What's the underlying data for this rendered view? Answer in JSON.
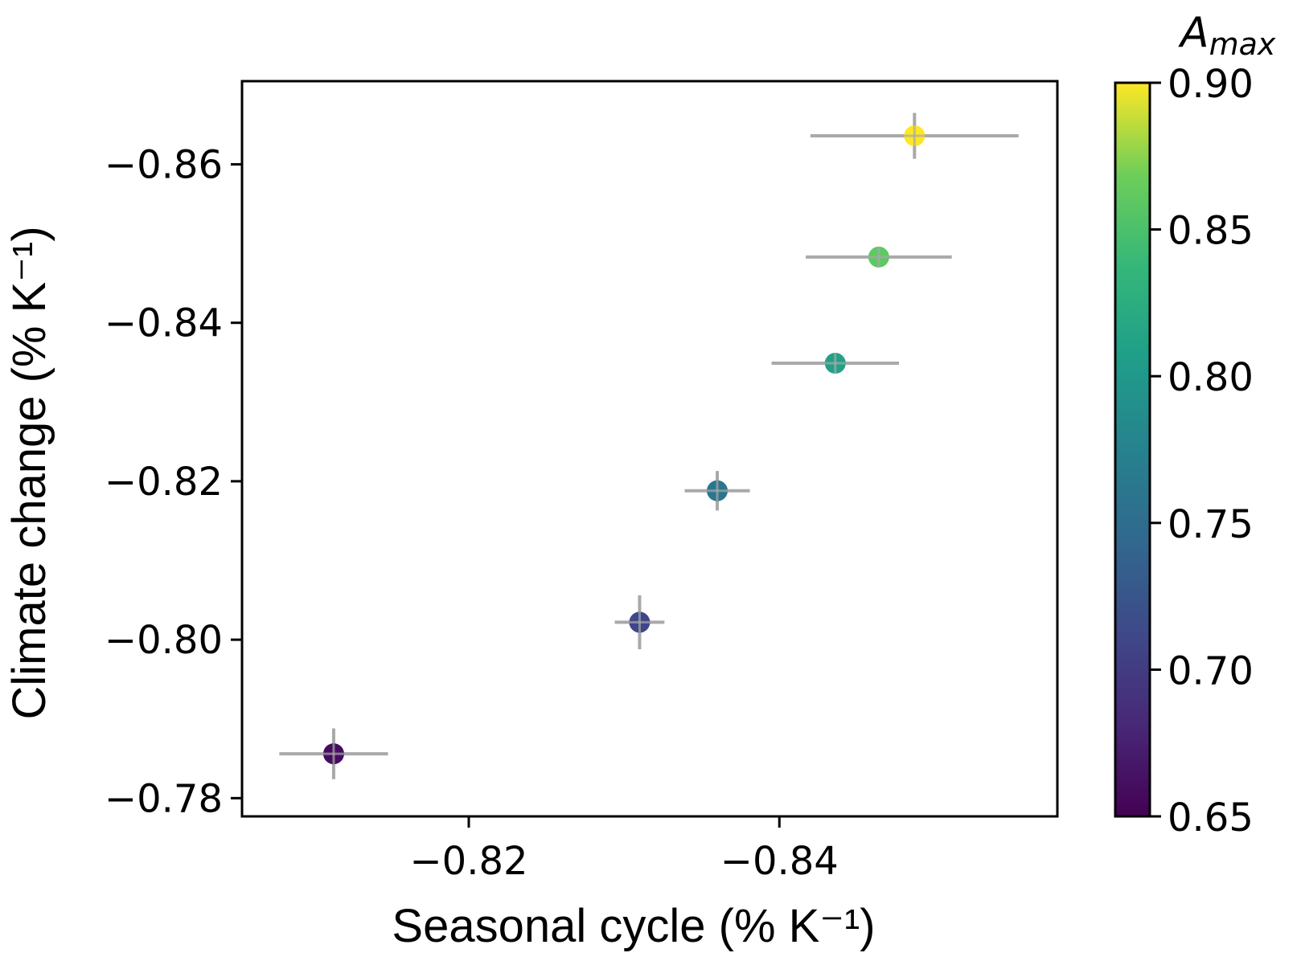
{
  "chart_data": {
    "type": "scatter",
    "title": "",
    "xlabel": "Seasonal cycle (% K⁻¹)",
    "ylabel": "Climate change (% K⁻¹)",
    "x_inverted": true,
    "y_inverted": true,
    "xlim": [
      -0.8054,
      -0.8579
    ],
    "ylim": [
      -0.7777,
      -0.8705
    ],
    "xticks": [
      -0.82,
      -0.84
    ],
    "xtick_labels": [
      "−0.82",
      "−0.84"
    ],
    "yticks": [
      -0.78,
      -0.8,
      -0.82,
      -0.84,
      -0.86
    ],
    "ytick_labels": [
      "−0.78",
      "−0.80",
      "−0.82",
      "−0.84",
      "−0.86"
    ],
    "grid": false,
    "colorbar": {
      "title_main": "A",
      "title_sub": "max",
      "colormap": "viridis",
      "range": [
        0.65,
        0.9
      ],
      "ticks": [
        0.65,
        0.7,
        0.75,
        0.8,
        0.85,
        0.9
      ],
      "tick_labels": [
        "0.65",
        "0.70",
        "0.75",
        "0.80",
        "0.85",
        "0.90"
      ],
      "placement": "right"
    },
    "errorbar_color": "#a9a9a9",
    "points": [
      {
        "x": -0.8113,
        "y": -0.7856,
        "xerr": 0.0035,
        "yerr": 0.0032,
        "amax": 0.66
      },
      {
        "x": -0.831,
        "y": -0.8022,
        "xerr": 0.0016,
        "yerr": 0.0034,
        "amax": 0.71
      },
      {
        "x": -0.836,
        "y": -0.8188,
        "xerr": 0.0021,
        "yerr": 0.0025,
        "amax": 0.76
      },
      {
        "x": -0.8436,
        "y": -0.8349,
        "xerr": 0.0041,
        "yerr": 0.0008,
        "amax": 0.81
      },
      {
        "x": -0.8464,
        "y": -0.8483,
        "xerr": 0.0047,
        "yerr": 0.0006,
        "amax": 0.86
      },
      {
        "x": -0.8487,
        "y": -0.8636,
        "xerr": 0.0067,
        "yerr": 0.0029,
        "amax": 0.9
      }
    ]
  }
}
